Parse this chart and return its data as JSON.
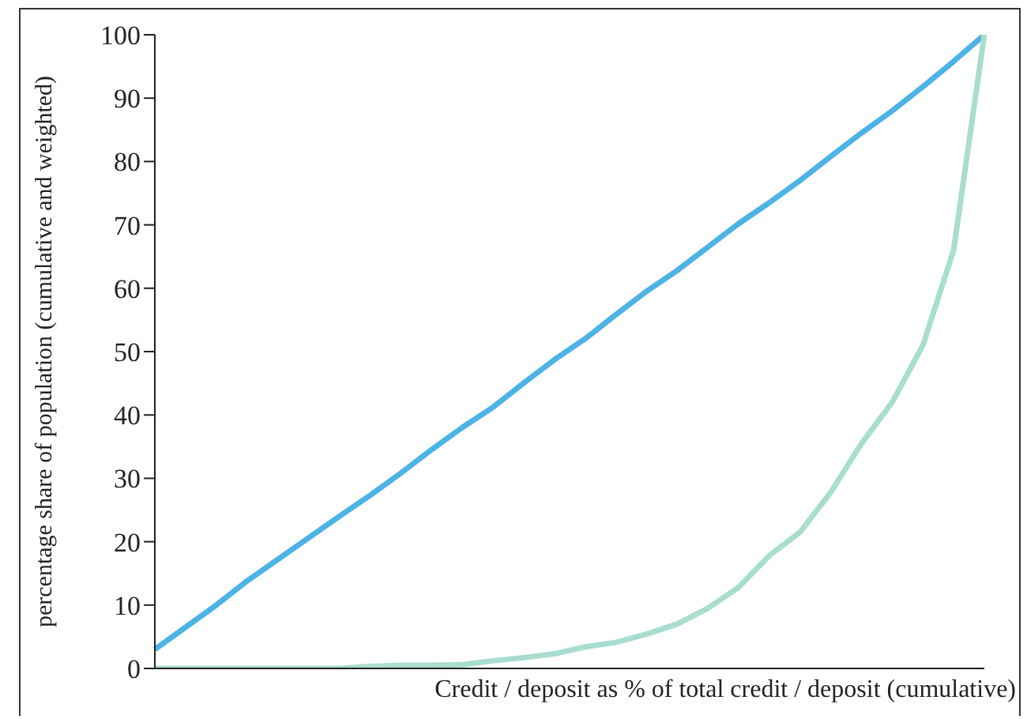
{
  "chart_data": {
    "type": "line",
    "xlabel": "Credit / deposit as % of total credit / deposit (cumulative)",
    "ylabel": "percentage share of population (cumulative and weighted)",
    "categories": [
      null,
      null,
      null,
      null,
      null,
      null,
      null,
      null,
      null,
      null,
      null,
      null,
      null,
      null,
      null,
      null,
      null,
      null,
      null,
      null,
      null,
      null,
      null,
      null,
      null,
      null,
      null,
      null
    ],
    "series": [
      {
        "color": "#4db3e6",
        "values": [
          3,
          6.5,
          10,
          13.8,
          17.2,
          20.6,
          24,
          27.3,
          30.8,
          34.5,
          38,
          41.2,
          45,
          48.7,
          52,
          55.8,
          59.5,
          62.8,
          66.5,
          70.2,
          73.5,
          77,
          80.8,
          84.5,
          88,
          91.8,
          95.8,
          100
        ]
      },
      {
        "color": "#a8ddd0",
        "values": [
          0,
          0,
          0,
          0,
          0,
          0,
          0,
          0.3,
          0.5,
          0.5,
          0.6,
          1.2,
          1.7,
          2.3,
          3.4,
          4.1,
          5.4,
          7,
          9.5,
          12.8,
          17.8,
          21.5,
          27.8,
          35.5,
          42,
          51,
          66,
          100
        ]
      }
    ],
    "ylim": [
      0,
      100
    ],
    "yticks": [
      0,
      10,
      20,
      30,
      40,
      50,
      60,
      70,
      80,
      90,
      100
    ],
    "grid": false,
    "legend": false,
    "marker": "none",
    "line_style": "solid"
  }
}
